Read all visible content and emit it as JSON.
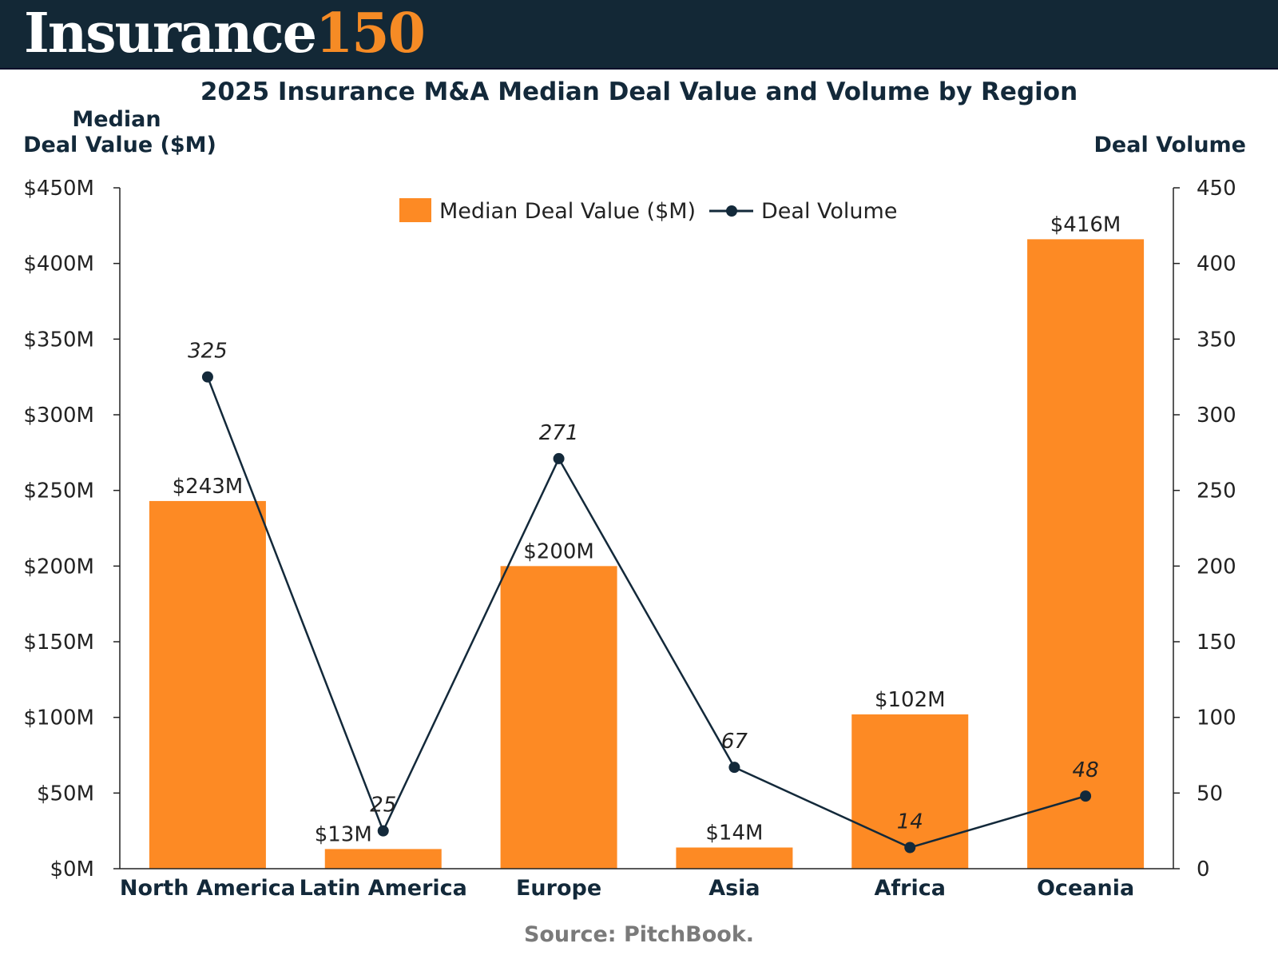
{
  "header": {
    "logo_word": "Insurance",
    "logo_number": "150",
    "bg": "#132836",
    "accent": "#f68b25"
  },
  "source": "Source: PitchBook.",
  "chart_data": {
    "type": "bar+line",
    "title": "2025 Insurance M&A Median Deal Value and Volume by Region",
    "categories": [
      "North America",
      "Latin America",
      "Europe",
      "Asia",
      "Africa",
      "Oceania"
    ],
    "ylabel_left": [
      "Median",
      "Deal Value ($M)"
    ],
    "ylabel_right": "Deal Volume",
    "ylim_left": [
      0,
      450
    ],
    "ylim_right": [
      0,
      450
    ],
    "yticks_left": [
      "$0M",
      "$50M",
      "$100M",
      "$150M",
      "$200M",
      "$250M",
      "$300M",
      "$350M",
      "$400M",
      "$450M"
    ],
    "yticks_right": [
      "0",
      "50",
      "100",
      "150",
      "200",
      "250",
      "300",
      "350",
      "400",
      "450"
    ],
    "legend_position": "top-center",
    "grid": false,
    "series": [
      {
        "name": "Median Deal Value ($M)",
        "type": "bar",
        "color": "#fd8a24",
        "values": [
          243,
          13,
          200,
          14,
          102,
          416
        ],
        "labels": [
          "$243M",
          "$13M",
          "$200M",
          "$14M",
          "$102M",
          "$416M"
        ]
      },
      {
        "name": "Deal Volume",
        "type": "line",
        "color": "#13293a",
        "values": [
          325,
          25,
          271,
          67,
          14,
          48
        ],
        "labels": [
          "325",
          "25",
          "271",
          "67",
          "14",
          "48"
        ]
      }
    ]
  }
}
